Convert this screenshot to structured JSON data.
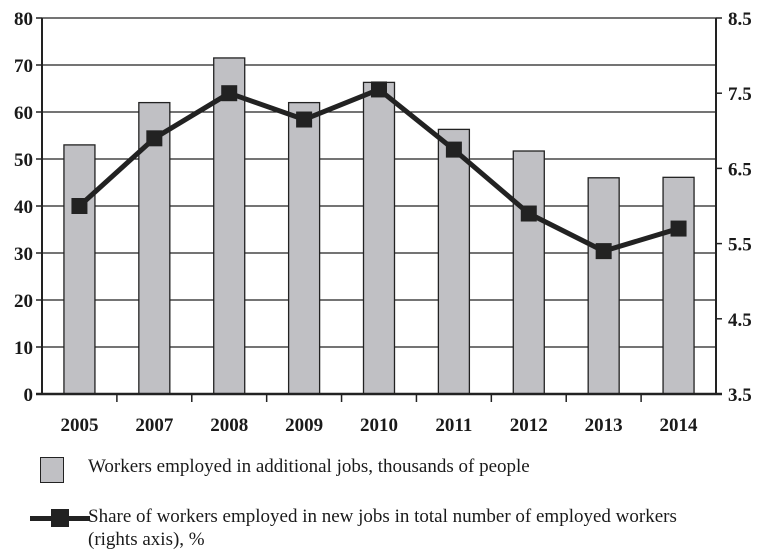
{
  "chart_data": {
    "type": "bar+line",
    "categories": [
      "2005",
      "2007",
      "2008",
      "2009",
      "2010",
      "2011",
      "2012",
      "2013",
      "2014"
    ],
    "series": [
      {
        "name": "Workers employed in additional jobs, thousands of people",
        "type": "bar",
        "axis": "left",
        "values": [
          53,
          62,
          71.5,
          62,
          66.3,
          56.3,
          51.7,
          46,
          46.1
        ]
      },
      {
        "name": "Share of workers employed in new jobs in total number of employed workers (rights axis), %",
        "type": "line",
        "axis": "right",
        "values": [
          6.0,
          6.9,
          7.5,
          7.15,
          7.55,
          6.75,
          5.9,
          5.4,
          5.7
        ]
      }
    ],
    "left_axis": {
      "range": [
        0,
        80
      ],
      "ticks": [
        "0",
        "10",
        "20",
        "30",
        "40",
        "50",
        "60",
        "70",
        "80"
      ]
    },
    "right_axis": {
      "range": [
        3.5,
        8.5
      ],
      "ticks": [
        "3.5",
        "4.5",
        "5.5",
        "6.5",
        "7.5",
        "8.5"
      ]
    },
    "grid": true,
    "legend_position": "bottom",
    "colors": {
      "bar_fill": "#c0c0c4",
      "bar_stroke": "#222222",
      "line": "#222222",
      "grid": "#222222"
    }
  }
}
